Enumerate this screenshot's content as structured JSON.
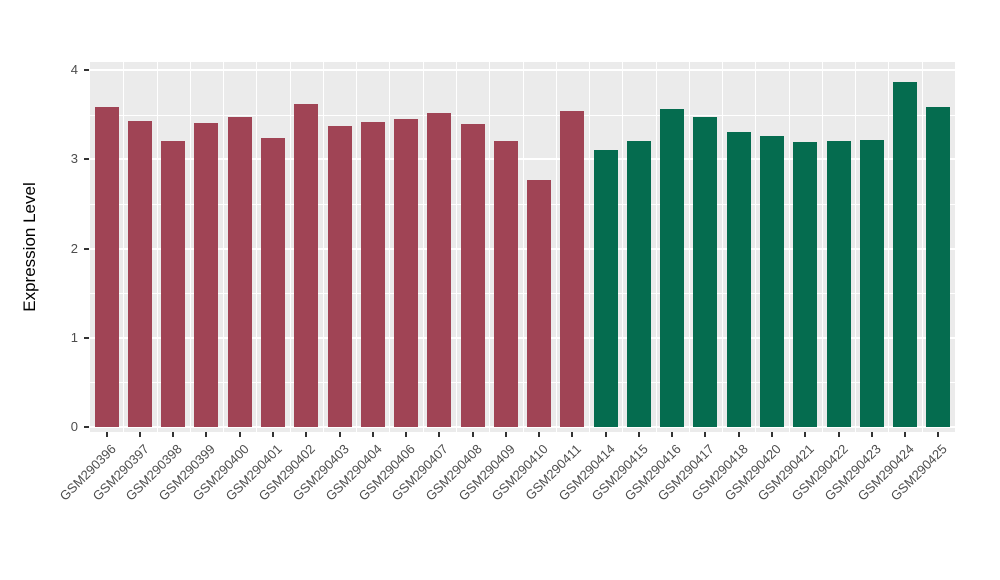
{
  "chart_data": {
    "type": "bar",
    "title": "",
    "xlabel": "",
    "ylabel": "Expression Level",
    "ylim": [
      0,
      4
    ],
    "yticks": [
      0,
      1,
      2,
      3,
      4
    ],
    "grid": "on",
    "legend_position": "none",
    "panel_background": "#EBEBEB",
    "grid_color": "#FFFFFF",
    "tick_label_color": "#4D4D4D",
    "axis_title_color": "#000000",
    "group_colors": {
      "group1": "#A04455",
      "group2": "#056C4F"
    },
    "categories": [
      "GSM290396",
      "GSM290397",
      "GSM290398",
      "GSM290399",
      "GSM290400",
      "GSM290401",
      "GSM290402",
      "GSM290403",
      "GSM290404",
      "GSM290406",
      "GSM290407",
      "GSM290408",
      "GSM290409",
      "GSM290410",
      "GSM290411",
      "GSM290414",
      "GSM290415",
      "GSM290416",
      "GSM290417",
      "GSM290418",
      "GSM290420",
      "GSM290421",
      "GSM290422",
      "GSM290423",
      "GSM290424",
      "GSM290425"
    ],
    "values": [
      3.59,
      3.43,
      3.2,
      3.41,
      3.47,
      3.24,
      3.62,
      3.37,
      3.42,
      3.45,
      3.52,
      3.4,
      3.2,
      2.77,
      3.54,
      3.1,
      3.2,
      3.56,
      3.47,
      3.31,
      3.26,
      3.19,
      3.2,
      3.22,
      3.87,
      3.59
    ],
    "bar_groups": [
      "group1",
      "group1",
      "group1",
      "group1",
      "group1",
      "group1",
      "group1",
      "group1",
      "group1",
      "group1",
      "group1",
      "group1",
      "group1",
      "group1",
      "group1",
      "group2",
      "group2",
      "group2",
      "group2",
      "group2",
      "group2",
      "group2",
      "group2",
      "group2",
      "group2",
      "group2"
    ]
  }
}
